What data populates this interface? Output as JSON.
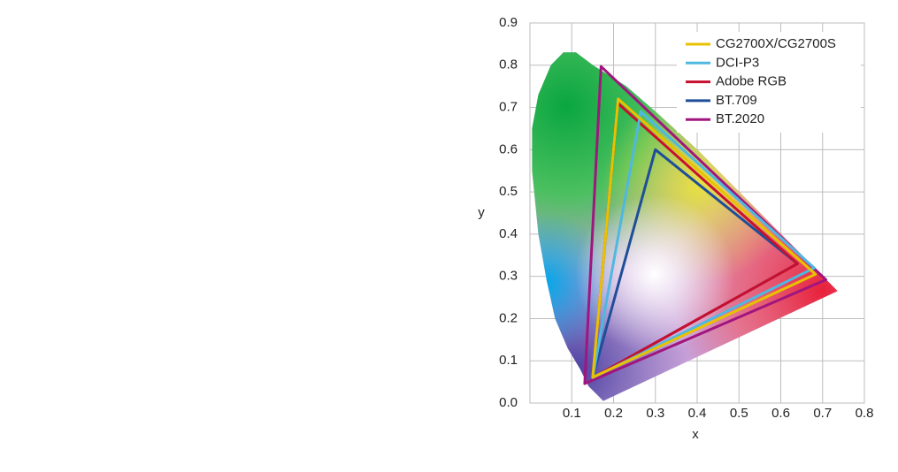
{
  "chart_data": {
    "type": "polygon",
    "xlabel": "x",
    "ylabel": "y",
    "xlim": [
      0,
      0.8
    ],
    "ylim": [
      0,
      0.9
    ],
    "xticks": [
      0.1,
      0.2,
      0.3,
      0.4,
      0.5,
      0.6,
      0.7,
      0.8
    ],
    "yticks": [
      {
        "value": 0,
        "label": "0.0"
      },
      0.1,
      0.2,
      0.3,
      0.4,
      0.5,
      0.6,
      0.7,
      0.8,
      0.9
    ],
    "grid": true,
    "legend": "upper right",
    "series": [
      {
        "name": "CG2700X/CG2700S",
        "color": "#e8c200",
        "x": [
          0.683,
          0.211,
          0.15
        ],
        "values": [
          0.305,
          0.72,
          0.061
        ]
      },
      {
        "name": "DCI-P3",
        "color": "#4fb8e0",
        "x": [
          0.68,
          0.265,
          0.15
        ],
        "values": [
          0.32,
          0.69,
          0.06
        ]
      },
      {
        "name": "Adobe RGB",
        "color": "#c8102e",
        "x": [
          0.64,
          0.21,
          0.15
        ],
        "values": [
          0.33,
          0.71,
          0.06
        ]
      },
      {
        "name": "BT.709",
        "color": "#1f4e99",
        "x": [
          0.64,
          0.3,
          0.15
        ],
        "values": [
          0.33,
          0.6,
          0.06
        ]
      },
      {
        "name": "BT.2020",
        "color": "#a0157e",
        "x": [
          0.708,
          0.17,
          0.131
        ],
        "values": [
          0.292,
          0.797,
          0.046
        ]
      }
    ]
  }
}
